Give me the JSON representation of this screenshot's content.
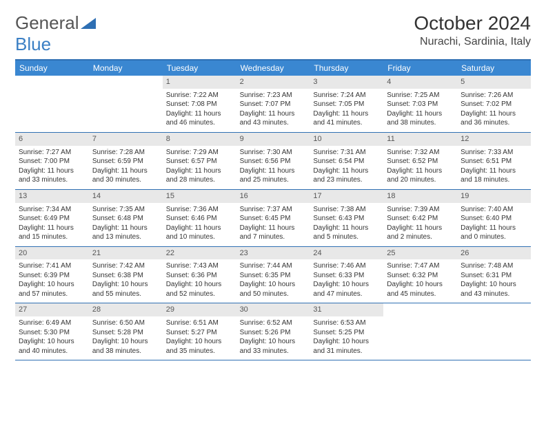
{
  "logo": {
    "text1": "General",
    "text2": "Blue"
  },
  "header": {
    "month_title": "October 2024",
    "location": "Nurachi, Sardinia, Italy"
  },
  "colors": {
    "header_bar": "#3a87d1",
    "week_border": "#2e6fb3",
    "daynum_bg": "#e8e8e8",
    "text": "#333333",
    "logo_blue": "#3a7fc4"
  },
  "day_names": [
    "Sunday",
    "Monday",
    "Tuesday",
    "Wednesday",
    "Thursday",
    "Friday",
    "Saturday"
  ],
  "weeks": [
    [
      null,
      null,
      {
        "n": "1",
        "sr": "Sunrise: 7:22 AM",
        "ss": "Sunset: 7:08 PM",
        "dl1": "Daylight: 11 hours",
        "dl2": "and 46 minutes."
      },
      {
        "n": "2",
        "sr": "Sunrise: 7:23 AM",
        "ss": "Sunset: 7:07 PM",
        "dl1": "Daylight: 11 hours",
        "dl2": "and 43 minutes."
      },
      {
        "n": "3",
        "sr": "Sunrise: 7:24 AM",
        "ss": "Sunset: 7:05 PM",
        "dl1": "Daylight: 11 hours",
        "dl2": "and 41 minutes."
      },
      {
        "n": "4",
        "sr": "Sunrise: 7:25 AM",
        "ss": "Sunset: 7:03 PM",
        "dl1": "Daylight: 11 hours",
        "dl2": "and 38 minutes."
      },
      {
        "n": "5",
        "sr": "Sunrise: 7:26 AM",
        "ss": "Sunset: 7:02 PM",
        "dl1": "Daylight: 11 hours",
        "dl2": "and 36 minutes."
      }
    ],
    [
      {
        "n": "6",
        "sr": "Sunrise: 7:27 AM",
        "ss": "Sunset: 7:00 PM",
        "dl1": "Daylight: 11 hours",
        "dl2": "and 33 minutes."
      },
      {
        "n": "7",
        "sr": "Sunrise: 7:28 AM",
        "ss": "Sunset: 6:59 PM",
        "dl1": "Daylight: 11 hours",
        "dl2": "and 30 minutes."
      },
      {
        "n": "8",
        "sr": "Sunrise: 7:29 AM",
        "ss": "Sunset: 6:57 PM",
        "dl1": "Daylight: 11 hours",
        "dl2": "and 28 minutes."
      },
      {
        "n": "9",
        "sr": "Sunrise: 7:30 AM",
        "ss": "Sunset: 6:56 PM",
        "dl1": "Daylight: 11 hours",
        "dl2": "and 25 minutes."
      },
      {
        "n": "10",
        "sr": "Sunrise: 7:31 AM",
        "ss": "Sunset: 6:54 PM",
        "dl1": "Daylight: 11 hours",
        "dl2": "and 23 minutes."
      },
      {
        "n": "11",
        "sr": "Sunrise: 7:32 AM",
        "ss": "Sunset: 6:52 PM",
        "dl1": "Daylight: 11 hours",
        "dl2": "and 20 minutes."
      },
      {
        "n": "12",
        "sr": "Sunrise: 7:33 AM",
        "ss": "Sunset: 6:51 PM",
        "dl1": "Daylight: 11 hours",
        "dl2": "and 18 minutes."
      }
    ],
    [
      {
        "n": "13",
        "sr": "Sunrise: 7:34 AM",
        "ss": "Sunset: 6:49 PM",
        "dl1": "Daylight: 11 hours",
        "dl2": "and 15 minutes."
      },
      {
        "n": "14",
        "sr": "Sunrise: 7:35 AM",
        "ss": "Sunset: 6:48 PM",
        "dl1": "Daylight: 11 hours",
        "dl2": "and 13 minutes."
      },
      {
        "n": "15",
        "sr": "Sunrise: 7:36 AM",
        "ss": "Sunset: 6:46 PM",
        "dl1": "Daylight: 11 hours",
        "dl2": "and 10 minutes."
      },
      {
        "n": "16",
        "sr": "Sunrise: 7:37 AM",
        "ss": "Sunset: 6:45 PM",
        "dl1": "Daylight: 11 hours",
        "dl2": "and 7 minutes."
      },
      {
        "n": "17",
        "sr": "Sunrise: 7:38 AM",
        "ss": "Sunset: 6:43 PM",
        "dl1": "Daylight: 11 hours",
        "dl2": "and 5 minutes."
      },
      {
        "n": "18",
        "sr": "Sunrise: 7:39 AM",
        "ss": "Sunset: 6:42 PM",
        "dl1": "Daylight: 11 hours",
        "dl2": "and 2 minutes."
      },
      {
        "n": "19",
        "sr": "Sunrise: 7:40 AM",
        "ss": "Sunset: 6:40 PM",
        "dl1": "Daylight: 11 hours",
        "dl2": "and 0 minutes."
      }
    ],
    [
      {
        "n": "20",
        "sr": "Sunrise: 7:41 AM",
        "ss": "Sunset: 6:39 PM",
        "dl1": "Daylight: 10 hours",
        "dl2": "and 57 minutes."
      },
      {
        "n": "21",
        "sr": "Sunrise: 7:42 AM",
        "ss": "Sunset: 6:38 PM",
        "dl1": "Daylight: 10 hours",
        "dl2": "and 55 minutes."
      },
      {
        "n": "22",
        "sr": "Sunrise: 7:43 AM",
        "ss": "Sunset: 6:36 PM",
        "dl1": "Daylight: 10 hours",
        "dl2": "and 52 minutes."
      },
      {
        "n": "23",
        "sr": "Sunrise: 7:44 AM",
        "ss": "Sunset: 6:35 PM",
        "dl1": "Daylight: 10 hours",
        "dl2": "and 50 minutes."
      },
      {
        "n": "24",
        "sr": "Sunrise: 7:46 AM",
        "ss": "Sunset: 6:33 PM",
        "dl1": "Daylight: 10 hours",
        "dl2": "and 47 minutes."
      },
      {
        "n": "25",
        "sr": "Sunrise: 7:47 AM",
        "ss": "Sunset: 6:32 PM",
        "dl1": "Daylight: 10 hours",
        "dl2": "and 45 minutes."
      },
      {
        "n": "26",
        "sr": "Sunrise: 7:48 AM",
        "ss": "Sunset: 6:31 PM",
        "dl1": "Daylight: 10 hours",
        "dl2": "and 43 minutes."
      }
    ],
    [
      {
        "n": "27",
        "sr": "Sunrise: 6:49 AM",
        "ss": "Sunset: 5:30 PM",
        "dl1": "Daylight: 10 hours",
        "dl2": "and 40 minutes."
      },
      {
        "n": "28",
        "sr": "Sunrise: 6:50 AM",
        "ss": "Sunset: 5:28 PM",
        "dl1": "Daylight: 10 hours",
        "dl2": "and 38 minutes."
      },
      {
        "n": "29",
        "sr": "Sunrise: 6:51 AM",
        "ss": "Sunset: 5:27 PM",
        "dl1": "Daylight: 10 hours",
        "dl2": "and 35 minutes."
      },
      {
        "n": "30",
        "sr": "Sunrise: 6:52 AM",
        "ss": "Sunset: 5:26 PM",
        "dl1": "Daylight: 10 hours",
        "dl2": "and 33 minutes."
      },
      {
        "n": "31",
        "sr": "Sunrise: 6:53 AM",
        "ss": "Sunset: 5:25 PM",
        "dl1": "Daylight: 10 hours",
        "dl2": "and 31 minutes."
      },
      null,
      null
    ]
  ]
}
